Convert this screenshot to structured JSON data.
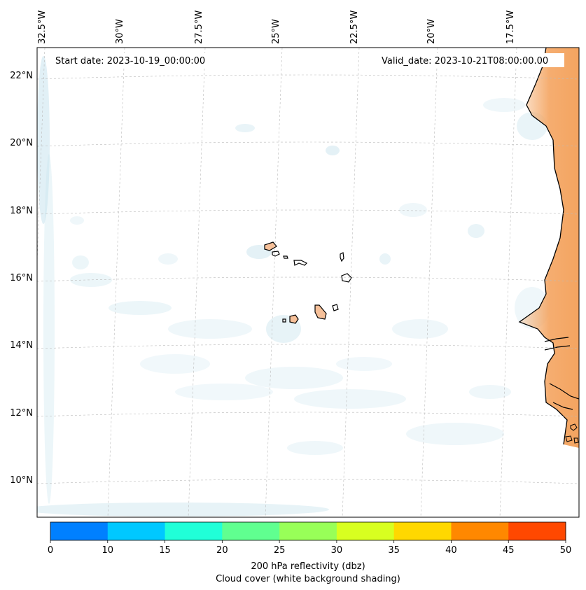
{
  "map": {
    "start_date_label": "Start date: 2023-10-19_00:00:00",
    "valid_date_label": "Valid_date: 2023-10-21T08:00:00.00",
    "longitude_labels": [
      "32.5°W",
      "30°W",
      "27.5°W",
      "25°W",
      "22.5°W",
      "20°W",
      "17.5°W"
    ],
    "latitude_labels": [
      "22°N",
      "20°N",
      "18°N",
      "16°N",
      "14°N",
      "12°N",
      "10°N"
    ],
    "gridlines": "dashed",
    "coastline_color": "#000000",
    "land_fill_color": "#f4a460",
    "cloud_color": "#c9e4ee"
  },
  "colorbar": {
    "ticks": [
      "0",
      "10",
      "15",
      "20",
      "25",
      "30",
      "35",
      "40",
      "45",
      "50"
    ],
    "colors": [
      "#0080ff",
      "#00c8ff",
      "#20ffd8",
      "#60ff90",
      "#98ff58",
      "#d8ff20",
      "#ffd800",
      "#ff8800",
      "#ff4800"
    ],
    "label_line1": "200 hPa reflectivity (dbz)",
    "label_line2": "Cloud cover (white background shading)"
  }
}
